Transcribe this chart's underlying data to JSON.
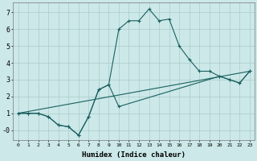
{
  "xlabel": "Humidex (Indice chaleur)",
  "bg_color": "#cce8e8",
  "grid_color": "#aacccc",
  "line_color": "#1a6060",
  "curve1_x": [
    0,
    1,
    2,
    3,
    4,
    5,
    6,
    7,
    8,
    9,
    10,
    11,
    12,
    13,
    14,
    15,
    16,
    17,
    18,
    19,
    20,
    21,
    22,
    23
  ],
  "curve1_y": [
    1.0,
    1.0,
    1.0,
    0.8,
    0.3,
    0.2,
    -0.3,
    0.8,
    2.4,
    2.7,
    6.0,
    6.5,
    6.5,
    7.2,
    6.5,
    6.6,
    5.0,
    4.2,
    3.5,
    3.5,
    3.2,
    3.0,
    2.8,
    3.5
  ],
  "curve2_x": [
    0,
    23
  ],
  "curve2_y": [
    1.0,
    3.5
  ],
  "curve3_x": [
    0,
    1,
    2,
    3,
    4,
    5,
    6,
    7,
    8,
    9,
    10,
    20,
    21,
    22,
    23
  ],
  "curve3_y": [
    1.0,
    1.0,
    1.0,
    0.8,
    0.3,
    0.2,
    -0.3,
    0.8,
    2.4,
    2.7,
    1.4,
    3.2,
    3.0,
    2.8,
    3.5
  ],
  "ylim": [
    -0.6,
    7.6
  ],
  "xlim": [
    -0.5,
    23.5
  ],
  "yticks": [
    0,
    1,
    2,
    3,
    4,
    5,
    6,
    7
  ],
  "ytick_labels": [
    "-0",
    "1",
    "2",
    "3",
    "4",
    "5",
    "6",
    "7"
  ],
  "xtick_labels": [
    "0",
    "1",
    "2",
    "3",
    "4",
    "5",
    "6",
    "7",
    "8",
    "9",
    "10",
    "11",
    "12",
    "13",
    "14",
    "15",
    "16",
    "17",
    "18",
    "19",
    "20",
    "21",
    "22",
    "23"
  ]
}
